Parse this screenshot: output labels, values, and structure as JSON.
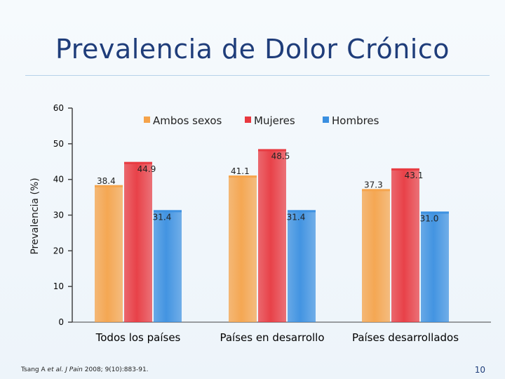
{
  "slide": {
    "title": "Prevalencia de Dolor Crónico",
    "page_number": "10",
    "citation": {
      "author": "Tsang A",
      "etal": "et al.",
      "journal": "J Pain",
      "details": "2008; 9(10):883-91."
    }
  },
  "colors": {
    "ambos": "#f5a34a",
    "mujeres": "#e8383f",
    "hombres": "#3a8fe0"
  },
  "chart_data": {
    "type": "bar",
    "title": "Prevalencia de Dolor Crónico",
    "ylabel": "Prevalencia (%)",
    "xlabel": "",
    "ylim": [
      0,
      60
    ],
    "yticks": [
      0,
      10,
      20,
      30,
      40,
      50,
      60
    ],
    "legend_position": "top",
    "categories": [
      "Todos los países",
      "Países en desarrollo",
      "Países desarrollados"
    ],
    "series": [
      {
        "name": "Ambos sexos",
        "color_key": "ambos",
        "values": [
          38.4,
          41.1,
          37.3
        ],
        "labels": [
          "38.4",
          "41.1",
          "37.3"
        ]
      },
      {
        "name": "Mujeres",
        "color_key": "mujeres",
        "values": [
          44.9,
          48.5,
          43.1
        ],
        "labels": [
          "44.9",
          "48.5",
          "43.1"
        ]
      },
      {
        "name": "Hombres",
        "color_key": "hombres",
        "values": [
          31.4,
          31.4,
          31.0
        ],
        "labels": [
          "31.4",
          "31.4",
          "31.0"
        ]
      }
    ]
  }
}
